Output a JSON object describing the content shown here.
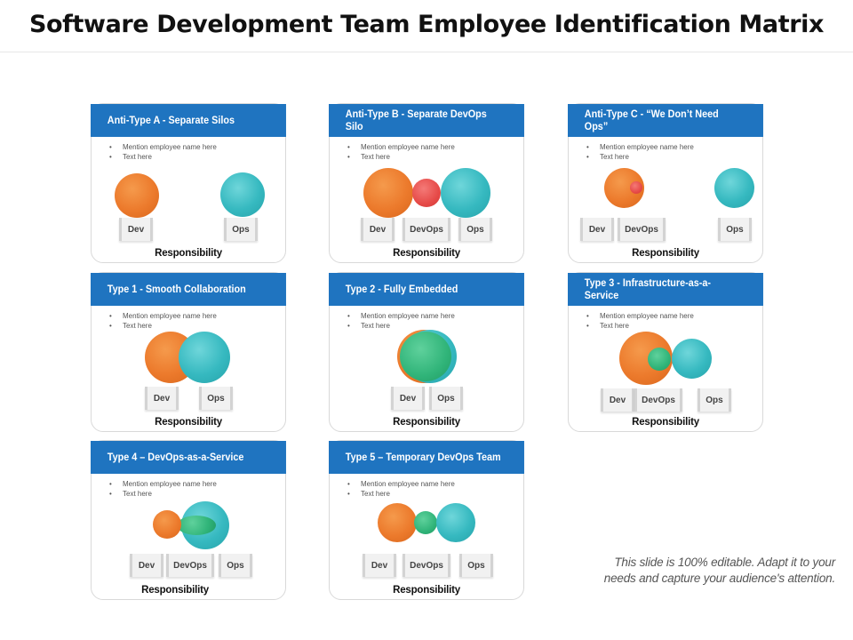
{
  "title": "Software Development Team Employee Identification Matrix",
  "footer_note_line1": "This slide is 100% editable. Adapt it to your",
  "footer_note_line2": "needs and capture your audience's attention.",
  "colors": {
    "header_blue": "#1f74c0",
    "orange": "#ec7a2c",
    "teal": "#36b9c0",
    "red": "#e64a48",
    "green": "#30b479"
  },
  "bullet_1": "Mention employee name here",
  "bullet_2": "Text here",
  "responsibility_label": "Responsibility",
  "cards": [
    {
      "title_l1": "Anti-Type A - Separate Silos",
      "title_l2": "",
      "tags": [
        "Dev",
        "Ops"
      ]
    },
    {
      "title_l1": "Anti-Type B - Separate DevOps",
      "title_l2": "Silo",
      "tags": [
        "Dev",
        "DevOps",
        "Ops"
      ]
    },
    {
      "title_l1": "Anti-Type C - “We Don’t Need",
      "title_l2": "Ops”",
      "tags": [
        "Dev",
        "DevOps",
        "Ops"
      ]
    },
    {
      "title_l1": "Type 1 - Smooth Collaboration",
      "title_l2": "",
      "tags": [
        "Dev",
        "Ops"
      ]
    },
    {
      "title_l1": "Type 2 - Fully Embedded",
      "title_l2": "",
      "tags": [
        "Dev",
        "Ops"
      ]
    },
    {
      "title_l1": "Type 3 - Infrastructure-as-a-",
      "title_l2": "Service",
      "tags": [
        "Dev",
        "DevOps",
        "Ops"
      ]
    },
    {
      "title_l1": "Type 4 – DevOps-as-a-Service",
      "title_l2": "",
      "tags": [
        "Dev",
        "DevOps",
        "Ops"
      ]
    },
    {
      "title_l1": "Type 5 – Temporary DevOps Team",
      "title_l2": "",
      "tags": [
        "Dev",
        "DevOps",
        "Ops"
      ]
    }
  ]
}
